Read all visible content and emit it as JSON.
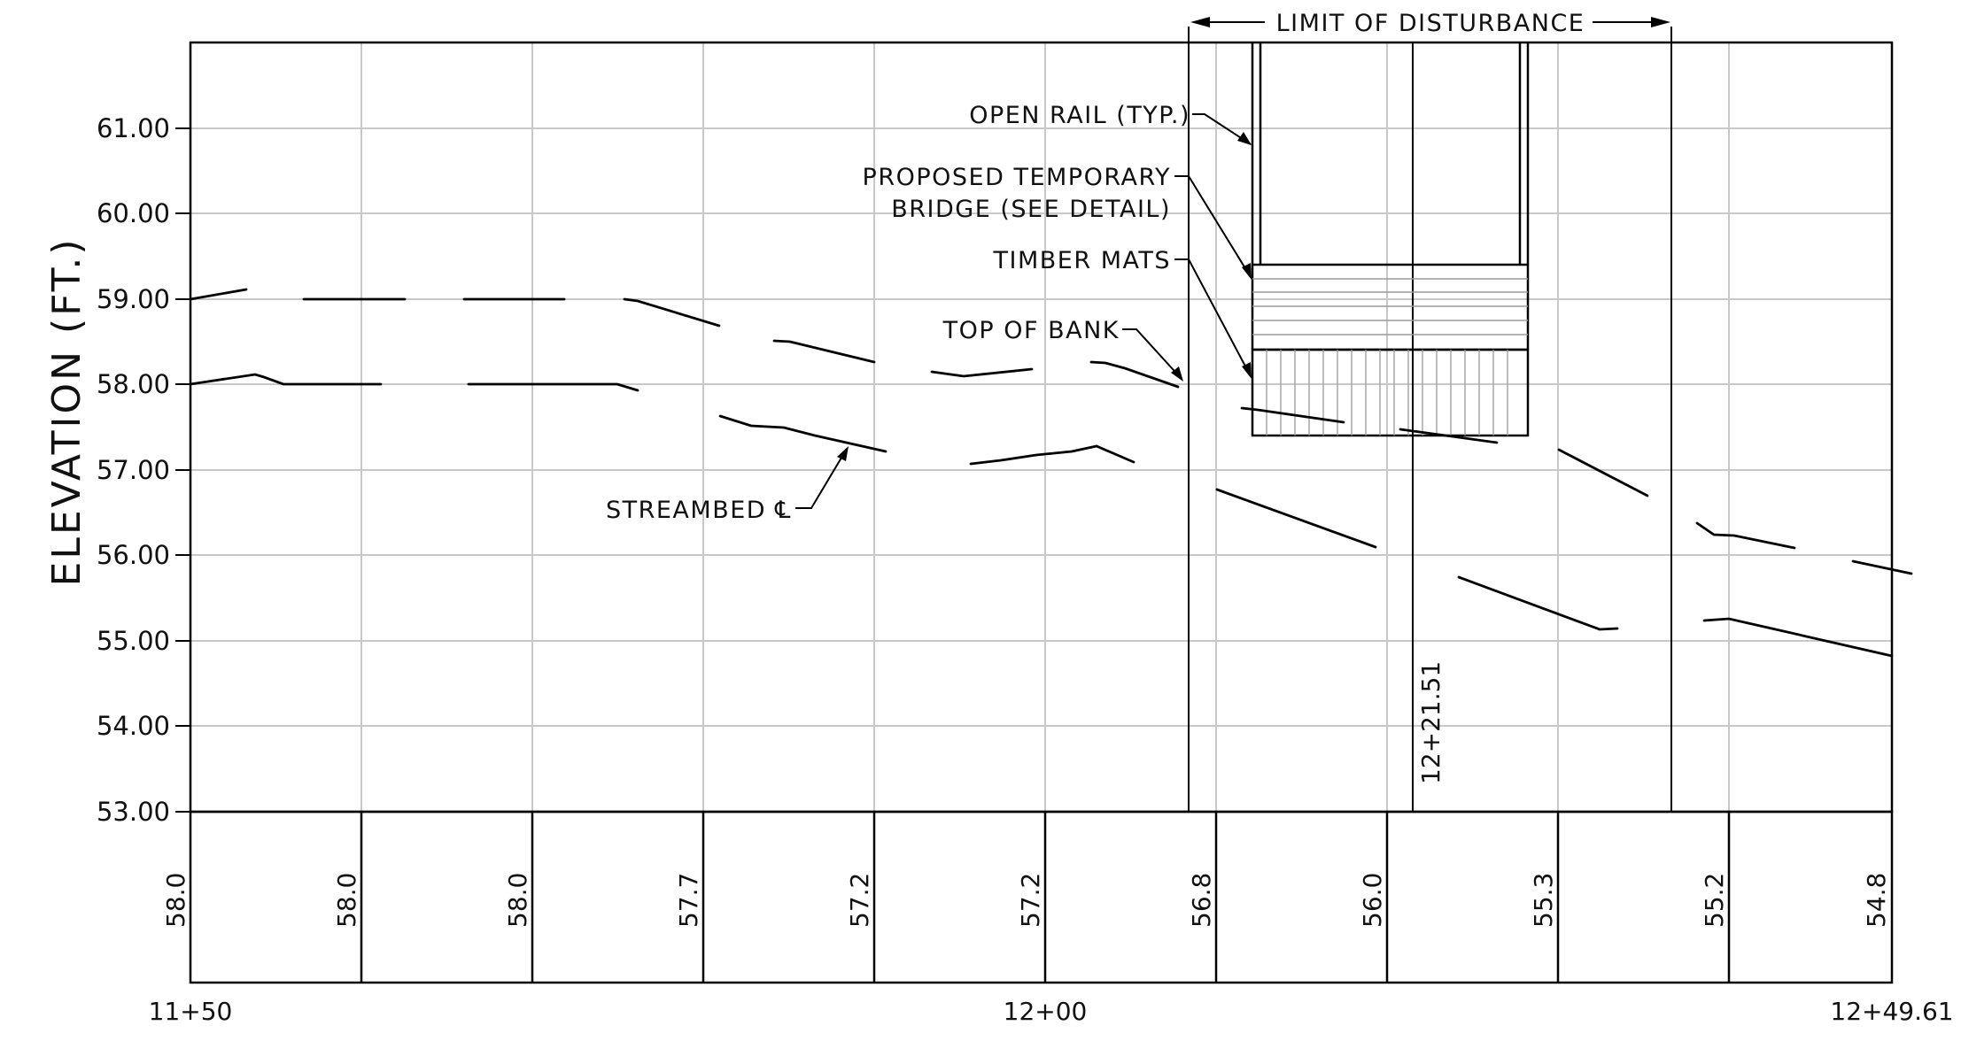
{
  "drawing": {
    "y_axis": {
      "title": "ELEVATION (FT.)",
      "ticks": [
        "61.00",
        "60.00",
        "59.00",
        "58.00",
        "57.00",
        "56.00",
        "55.00",
        "54.00",
        "53.00"
      ],
      "range": [
        53.0,
        62.0
      ]
    },
    "stations": {
      "start_label": "11+50",
      "mid_label": "12+00",
      "end_label": "12+49.61",
      "range": [
        1150,
        1249.61
      ]
    },
    "elevation_row": [
      "58.0",
      "58.0",
      "58.0",
      "57.7",
      "57.2",
      "57.2",
      "56.8",
      "56.0",
      "55.3",
      "55.2",
      "54.8"
    ],
    "station_callout": "12+21.51",
    "limit_label": "LIMIT OF DISTURBANCE",
    "notes": {
      "open_rail": "OPEN RAIL (TYP.)",
      "bridge_line1": "PROPOSED TEMPORARY",
      "bridge_line2": "BRIDGE (SEE DETAIL)",
      "timber_mats": "TIMBER MATS",
      "top_of_bank": "TOP OF BANK",
      "streambed": "STREAMBED ℄"
    }
  }
}
